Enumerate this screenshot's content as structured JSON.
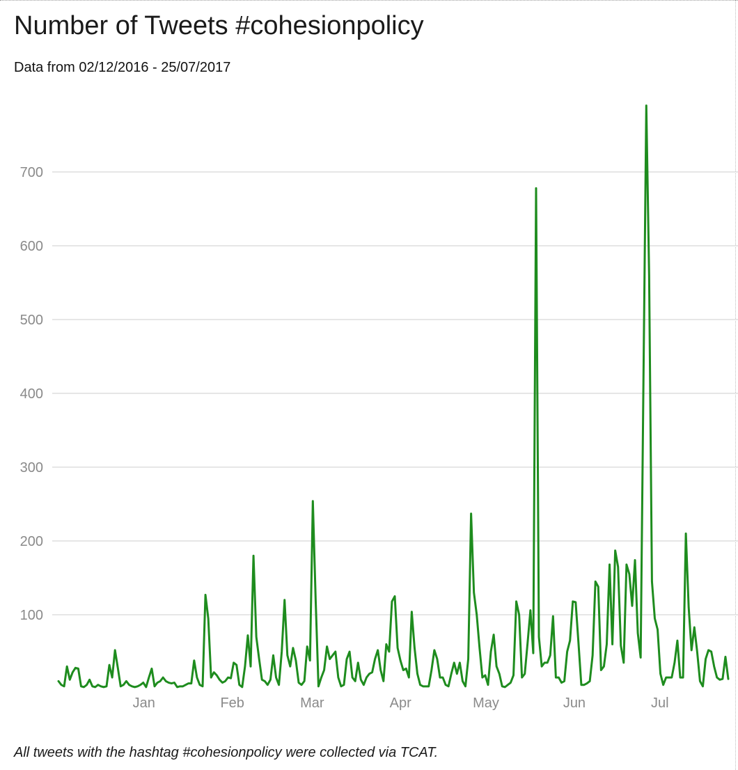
{
  "header": {
    "title": "Number of Tweets #cohesionpolicy",
    "subtitle": "Data from 02/12/2016 - 25/07/2017"
  },
  "footnote": "All tweets with the hashtag #cohesionpolicy were collected via TCAT.",
  "colors": {
    "line": "#1e8c1e",
    "grid": "#e6e6e6",
    "tick": "#8a8a8a"
  },
  "chart_data": {
    "type": "line",
    "title": "Number of Tweets #cohesionpolicy",
    "subtitle": "Data from 02/12/2016 - 25/07/2017",
    "xlabel": "",
    "ylabel": "",
    "x_start": "2016-12-02",
    "x_end": "2017-07-25",
    "ylim": [
      0,
      800
    ],
    "yticks": [
      100,
      200,
      300,
      400,
      500,
      600,
      700
    ],
    "xticks": [
      {
        "label": "Jan",
        "date": "2017-01-01"
      },
      {
        "label": "Feb",
        "date": "2017-02-01"
      },
      {
        "label": "Mar",
        "date": "2017-03-01"
      },
      {
        "label": "Apr",
        "date": "2017-04-01"
      },
      {
        "label": "May",
        "date": "2017-05-01"
      },
      {
        "label": "Jun",
        "date": "2017-06-01"
      },
      {
        "label": "Jul",
        "date": "2017-07-01"
      }
    ],
    "grid": true,
    "legend": "none",
    "series": [
      {
        "values": [
          10,
          5,
          3,
          30,
          12,
          22,
          28,
          27,
          3,
          2,
          5,
          12,
          3,
          2,
          5,
          3,
          2,
          3,
          32,
          15,
          52,
          28,
          3,
          5,
          10,
          5,
          3,
          2,
          3,
          5,
          8,
          2,
          15,
          27,
          3,
          8,
          10,
          15,
          10,
          8,
          7,
          8,
          2,
          3,
          3,
          5,
          7,
          7,
          38,
          15,
          5,
          3,
          127,
          95,
          15,
          22,
          18,
          12,
          8,
          10,
          15,
          14,
          35,
          32,
          5,
          2,
          30,
          72,
          30,
          180,
          70,
          40,
          12,
          10,
          5,
          12,
          45,
          15,
          5,
          50,
          120,
          45,
          30,
          55,
          38,
          8,
          5,
          10,
          57,
          38,
          254,
          120,
          3,
          15,
          25,
          57,
          40,
          45,
          50,
          15,
          3,
          5,
          40,
          50,
          15,
          10,
          35,
          12,
          5,
          15,
          20,
          22,
          40,
          52,
          25,
          10,
          60,
          50,
          118,
          125,
          55,
          38,
          25,
          27,
          15,
          104,
          55,
          20,
          5,
          3,
          3,
          3,
          25,
          52,
          40,
          15,
          15,
          5,
          3,
          20,
          35,
          20,
          35,
          10,
          3,
          40,
          237,
          130,
          100,
          55,
          15,
          18,
          5,
          50,
          73,
          30,
          20,
          3,
          2,
          5,
          8,
          18,
          118,
          100,
          15,
          20,
          62,
          106,
          48,
          678,
          70,
          30,
          35,
          35,
          45,
          98,
          15,
          15,
          8,
          10,
          50,
          65,
          118,
          117,
          62,
          5,
          5,
          7,
          10,
          45,
          145,
          138,
          25,
          30,
          60,
          168,
          60,
          187,
          165,
          58,
          35,
          168,
          155,
          112,
          174,
          75,
          42,
          420,
          790,
          560,
          145,
          95,
          80,
          20,
          5,
          15,
          15,
          15,
          35,
          65,
          15,
          15,
          210,
          110,
          52,
          83,
          50,
          10,
          3,
          40,
          52,
          50,
          30,
          15,
          12,
          13,
          43,
          13
        ]
      }
    ]
  }
}
